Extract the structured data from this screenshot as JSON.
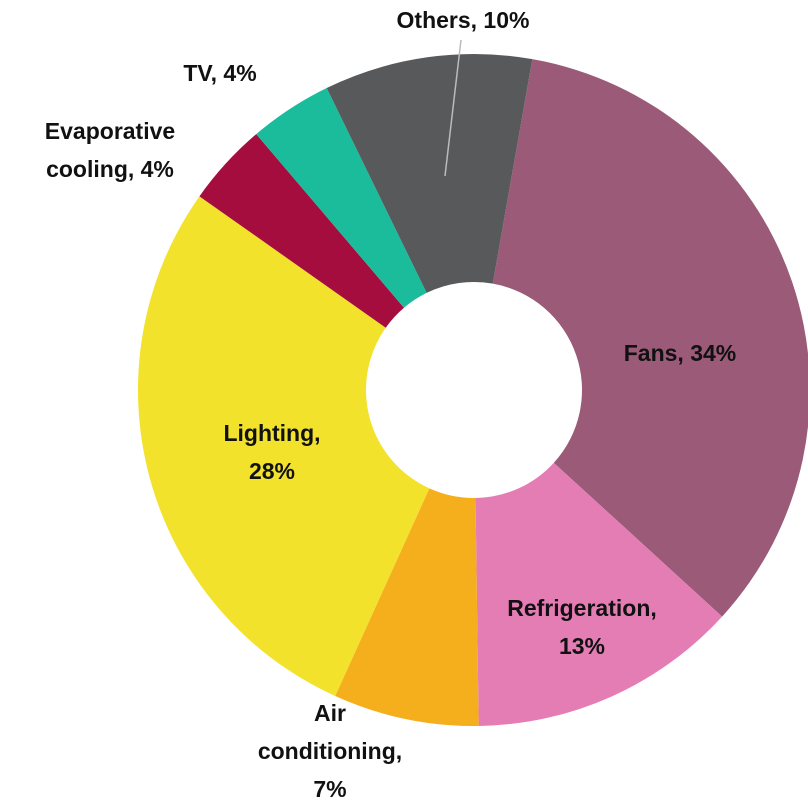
{
  "chart_data": {
    "type": "donut",
    "labels": [
      [
        "Fans, 34%"
      ],
      [
        "Refrigeration,",
        "13%"
      ],
      [
        "Air",
        "conditioning,",
        "7%"
      ],
      [
        "Lighting,",
        "28%"
      ],
      [
        "Evaporative",
        "cooling, 4%"
      ],
      [
        "TV, 4%"
      ],
      [
        "Others, 10%"
      ]
    ],
    "values": [
      34,
      13,
      7,
      28,
      4,
      4,
      10
    ],
    "colors": [
      "#9a5a78",
      "#e57db5",
      "#f5ae1c",
      "#f2e22c",
      "#a50d3e",
      "#1bbc9c",
      "#58595b"
    ]
  }
}
